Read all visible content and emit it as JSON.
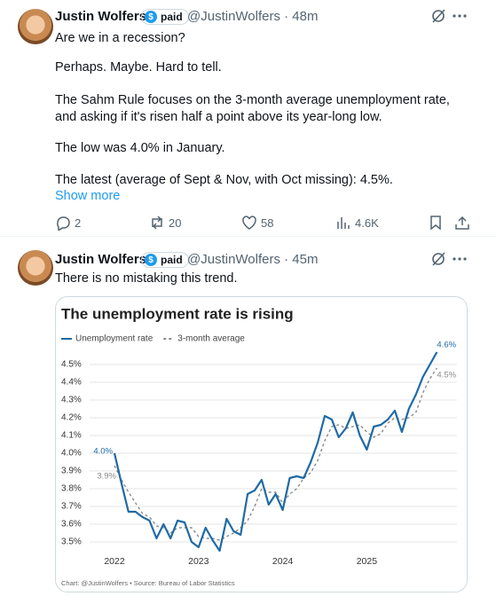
{
  "tweets": [
    {
      "name": "Justin Wolfers",
      "badge_icon": "$",
      "badge": "paid",
      "handle_time": "@JustinWolfers · 48m",
      "paragraphs": [
        "Are we in a recession?",
        "Perhaps. Maybe. Hard to tell.",
        "The Sahm Rule focuses on the  3-month average unemployment rate, and asking if it's risen half a point above its year-long low.",
        "The low was 4.0% in January.",
        "The latest (average of Sept & Nov, with Oct missing): 4.5%."
      ],
      "show_more": "Show more",
      "stats": {
        "replies": "2",
        "reposts": "20",
        "likes": "58",
        "views": "4.6K"
      }
    },
    {
      "name": "Justin Wolfers",
      "badge_icon": "$",
      "badge": "paid",
      "handle_time": "@JustinWolfers · 45m",
      "paragraphs": [
        "There is no mistaking this trend."
      ]
    }
  ],
  "chart_data": {
    "type": "line",
    "title": "The unemployment rate is rising",
    "source": "Chart: @JustinWolfers • Source: Bureau of Labor Statistics",
    "categories": [
      "2022",
      null,
      null,
      null,
      null,
      null,
      null,
      null,
      null,
      null,
      null,
      null,
      "2023",
      null,
      null,
      null,
      null,
      null,
      null,
      null,
      null,
      null,
      null,
      null,
      "2024",
      null,
      null,
      null,
      null,
      null,
      null,
      null,
      null,
      null,
      null,
      null,
      "2025",
      null,
      null,
      null,
      null,
      null,
      null,
      null,
      null,
      null,
      null
    ],
    "series": [
      {
        "name": "Unemployment rate",
        "color": "#1f6aa5",
        "dashed": false,
        "values": [
          4.0,
          3.83,
          3.67,
          3.67,
          3.64,
          3.62,
          3.52,
          3.6,
          3.52,
          3.62,
          3.61,
          3.5,
          3.47,
          3.58,
          3.51,
          3.45,
          3.63,
          3.56,
          3.54,
          3.77,
          3.79,
          3.85,
          3.71,
          3.77,
          3.68,
          3.86,
          3.87,
          3.86,
          3.95,
          4.06,
          4.21,
          4.19,
          4.09,
          4.14,
          4.23,
          4.1,
          4.02,
          4.15,
          4.16,
          4.19,
          4.24,
          4.12,
          4.25,
          4.33,
          4.43,
          4.5,
          4.57
        ],
        "value_labels": [
          "4.0%",
          null,
          null,
          null,
          null,
          null,
          null,
          null,
          null,
          null,
          null,
          null,
          null,
          null,
          null,
          null,
          null,
          null,
          null,
          null,
          null,
          null,
          null,
          null,
          null,
          null,
          null,
          null,
          null,
          null,
          null,
          null,
          null,
          null,
          null,
          null,
          null,
          null,
          null,
          null,
          null,
          null,
          null,
          null,
          null,
          null,
          "4.6%"
        ]
      },
      {
        "name": "3-month average",
        "color": "#8a8a8a",
        "dashed": true,
        "values": [
          3.93,
          3.85,
          3.78,
          3.72,
          3.66,
          3.64,
          3.59,
          3.58,
          3.55,
          3.58,
          3.58,
          3.58,
          3.53,
          3.52,
          3.52,
          3.51,
          3.53,
          3.55,
          3.58,
          3.62,
          3.7,
          3.8,
          3.78,
          3.78,
          3.72,
          3.77,
          3.8,
          3.86,
          3.89,
          3.96,
          4.07,
          4.15,
          4.16,
          4.14,
          4.15,
          4.16,
          4.12,
          4.09,
          4.11,
          4.17,
          4.2,
          4.19,
          4.2,
          4.23,
          4.34,
          4.42,
          4.48
        ],
        "value_labels": [
          "3.9%",
          null,
          null,
          null,
          null,
          null,
          null,
          null,
          null,
          null,
          null,
          null,
          null,
          null,
          null,
          null,
          null,
          null,
          null,
          null,
          null,
          null,
          null,
          null,
          null,
          null,
          null,
          null,
          null,
          null,
          null,
          null,
          null,
          null,
          null,
          null,
          null,
          null,
          null,
          null,
          null,
          null,
          null,
          null,
          null,
          null,
          "4.5%"
        ]
      }
    ],
    "ylim": [
      3.43,
      4.62
    ],
    "yticks": [
      {
        "value": 3.5,
        "label": "3.5%"
      },
      {
        "value": 3.6,
        "label": "3.6%"
      },
      {
        "value": 3.7,
        "label": "3.7%"
      },
      {
        "value": 3.8,
        "label": "3.8%"
      },
      {
        "value": 3.9,
        "label": "3.9%"
      },
      {
        "value": 4.0,
        "label": "4.0%"
      },
      {
        "value": 4.1,
        "label": "4.1%"
      },
      {
        "value": 4.2,
        "label": "4.2%"
      },
      {
        "value": 4.3,
        "label": "4.3%"
      },
      {
        "value": 4.4,
        "label": "4.4%"
      },
      {
        "value": 4.5,
        "label": "4.5%"
      }
    ],
    "grid": true
  }
}
